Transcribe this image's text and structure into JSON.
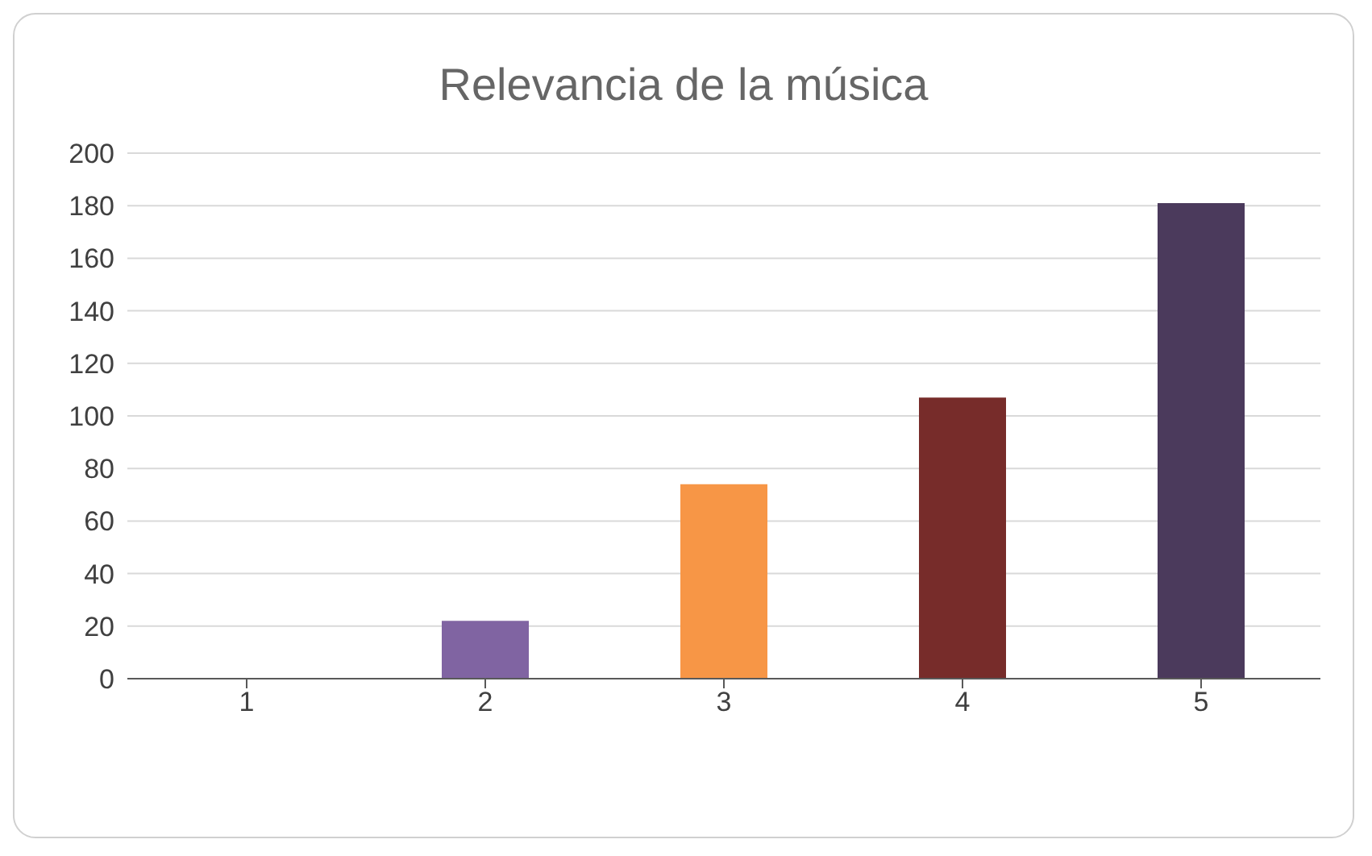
{
  "chart_data": {
    "type": "bar",
    "title": "Relevancia de la música",
    "categories": [
      "1",
      "2",
      "3",
      "4",
      "5"
    ],
    "values": [
      0,
      22,
      74,
      107,
      181
    ],
    "colors": [
      "#5b9bd5",
      "#8064a2",
      "#f79646",
      "#772c2a",
      "#4b3a5c"
    ],
    "ylim": [
      0,
      200
    ],
    "yticks": [
      0,
      20,
      40,
      60,
      80,
      100,
      120,
      140,
      160,
      180,
      200
    ],
    "grid": "y"
  }
}
